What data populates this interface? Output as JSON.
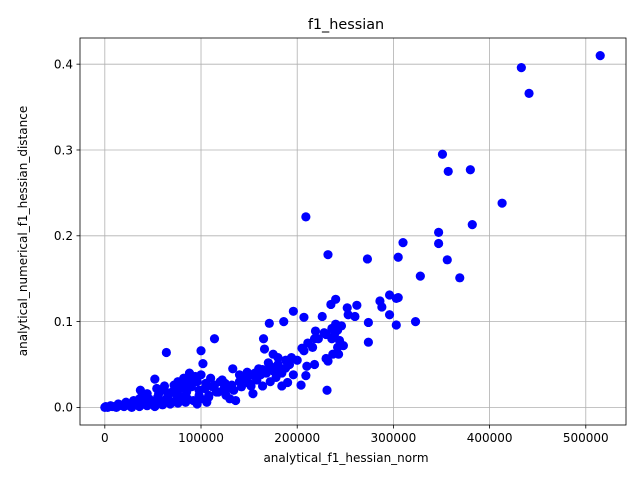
{
  "chart_data": {
    "type": "scatter",
    "title": "f1_hessian",
    "xlabel": "analytical_f1_hessian_norm",
    "ylabel": "analytical_numerical_f1_hessian_distance",
    "xlim": [
      -25800,
      541800
    ],
    "ylim": [
      -0.0205,
      0.4305
    ],
    "xticks": [
      0,
      100000,
      200000,
      300000,
      400000,
      500000
    ],
    "xtick_labels": [
      "0",
      "100000",
      "200000",
      "300000",
      "400000",
      "500000"
    ],
    "yticks": [
      0.0,
      0.1,
      0.2,
      0.3,
      0.4
    ],
    "ytick_labels": [
      "0.0",
      "0.1",
      "0.2",
      "0.3",
      "0.4"
    ],
    "grid": true,
    "point_color": "#0000ff",
    "series": [
      {
        "points": [
          [
            515000,
            0.41
          ],
          [
            433000,
            0.396
          ],
          [
            441000,
            0.366
          ],
          [
            351000,
            0.295
          ],
          [
            357000,
            0.275
          ],
          [
            380000,
            0.277
          ],
          [
            413000,
            0.238
          ],
          [
            382000,
            0.213
          ],
          [
            347000,
            0.204
          ],
          [
            347000,
            0.191
          ],
          [
            356000,
            0.172
          ],
          [
            369000,
            0.151
          ],
          [
            328000,
            0.153
          ],
          [
            310000,
            0.192
          ],
          [
            305000,
            0.175
          ],
          [
            273000,
            0.173
          ],
          [
            209000,
            0.222
          ],
          [
            232000,
            0.178
          ],
          [
            296000,
            0.131
          ],
          [
            303000,
            0.127
          ],
          [
            305000,
            0.128
          ],
          [
            286000,
            0.124
          ],
          [
            288000,
            0.117
          ],
          [
            296000,
            0.108
          ],
          [
            323000,
            0.1
          ],
          [
            303000,
            0.096
          ],
          [
            274000,
            0.076
          ],
          [
            274000,
            0.099
          ],
          [
            262000,
            0.119
          ],
          [
            252000,
            0.116
          ],
          [
            253000,
            0.108
          ],
          [
            260000,
            0.106
          ],
          [
            240000,
            0.126
          ],
          [
            235000,
            0.12
          ],
          [
            226000,
            0.106
          ],
          [
            240000,
            0.097
          ],
          [
            236000,
            0.092
          ],
          [
            239000,
            0.086
          ],
          [
            230000,
            0.085
          ],
          [
            219000,
            0.089
          ],
          [
            218000,
            0.08
          ],
          [
            236000,
            0.08
          ],
          [
            242000,
            0.07
          ],
          [
            243000,
            0.062
          ],
          [
            237000,
            0.062
          ],
          [
            230000,
            0.057
          ],
          [
            232000,
            0.054
          ],
          [
            218000,
            0.05
          ],
          [
            231000,
            0.02
          ],
          [
            207000,
            0.105
          ],
          [
            196000,
            0.112
          ],
          [
            186000,
            0.1
          ],
          [
            171000,
            0.098
          ],
          [
            211000,
            0.075
          ],
          [
            205000,
            0.069
          ],
          [
            207000,
            0.066
          ],
          [
            204000,
            0.026
          ],
          [
            209000,
            0.037
          ],
          [
            165000,
            0.08
          ],
          [
            166000,
            0.068
          ],
          [
            114000,
            0.08
          ],
          [
            100000,
            0.066
          ],
          [
            102000,
            0.051
          ],
          [
            64000,
            0.064
          ],
          [
            52000,
            0.033
          ],
          [
            62000,
            0.025
          ],
          [
            37000,
            0.02
          ],
          [
            194000,
            0.058
          ],
          [
            188000,
            0.055
          ],
          [
            180000,
            0.058
          ],
          [
            175000,
            0.062
          ],
          [
            170000,
            0.052
          ],
          [
            164000,
            0.025
          ],
          [
            184000,
            0.025
          ],
          [
            190000,
            0.029
          ],
          [
            180000,
            0.044
          ],
          [
            178000,
            0.035
          ],
          [
            172000,
            0.03
          ],
          [
            160000,
            0.045
          ],
          [
            155000,
            0.037
          ],
          [
            154000,
            0.016
          ],
          [
            152000,
            0.025
          ],
          [
            145000,
            0.033
          ],
          [
            136000,
            0.008
          ],
          [
            130000,
            0.01
          ],
          [
            148000,
            0.041
          ],
          [
            140000,
            0.038
          ],
          [
            133000,
            0.045
          ],
          [
            128000,
            0.022
          ],
          [
            125000,
            0.028
          ],
          [
            120000,
            0.03
          ],
          [
            118000,
            0.018
          ],
          [
            112000,
            0.024
          ],
          [
            108000,
            0.012
          ],
          [
            105000,
            0.028
          ],
          [
            98000,
            0.02
          ],
          [
            96000,
            0.004
          ],
          [
            92000,
            0.034
          ],
          [
            88000,
            0.03
          ],
          [
            85000,
            0.018
          ],
          [
            82000,
            0.026
          ],
          [
            80000,
            0.012
          ],
          [
            76000,
            0.03
          ],
          [
            74000,
            0.016
          ],
          [
            70000,
            0.006
          ],
          [
            66000,
            0.014
          ],
          [
            62000,
            0.02
          ],
          [
            58000,
            0.008
          ],
          [
            55000,
            0.012
          ],
          [
            50000,
            0.004
          ],
          [
            46000,
            0.01
          ],
          [
            42000,
            0.006
          ],
          [
            38000,
            0.012
          ],
          [
            34000,
            0.004
          ],
          [
            30000,
            0.008
          ],
          [
            26000,
            0.002
          ],
          [
            22000,
            0.006
          ],
          [
            18000,
            0.002
          ],
          [
            14000,
            0.004
          ],
          [
            10000,
            0.001
          ],
          [
            6000,
            0.002
          ],
          [
            3000,
            0.0
          ],
          [
            1000,
            0.001
          ],
          [
            0,
            0.0
          ],
          [
            12000,
            0.0
          ],
          [
            20000,
            0.001
          ],
          [
            28000,
            0.0
          ],
          [
            36000,
            0.001
          ],
          [
            44000,
            0.002
          ],
          [
            52000,
            0.001
          ],
          [
            60000,
            0.003
          ],
          [
            68000,
            0.004
          ],
          [
            76000,
            0.005
          ],
          [
            84000,
            0.006
          ],
          [
            92000,
            0.008
          ],
          [
            100000,
            0.01
          ],
          [
            108000,
            0.014
          ],
          [
            116000,
            0.018
          ],
          [
            124000,
            0.022
          ],
          [
            132000,
            0.026
          ],
          [
            140000,
            0.03
          ],
          [
            148000,
            0.036
          ],
          [
            156000,
            0.04
          ],
          [
            164000,
            0.044
          ],
          [
            172000,
            0.048
          ],
          [
            180000,
            0.05
          ],
          [
            188000,
            0.046
          ],
          [
            196000,
            0.038
          ],
          [
            88000,
            0.04
          ],
          [
            94000,
            0.036
          ],
          [
            110000,
            0.034
          ],
          [
            122000,
            0.032
          ],
          [
            104000,
            0.022
          ],
          [
            114000,
            0.026
          ],
          [
            90000,
            0.024
          ],
          [
            78000,
            0.022
          ],
          [
            70000,
            0.018
          ],
          [
            64000,
            0.01
          ],
          [
            56000,
            0.016
          ],
          [
            48000,
            0.008
          ],
          [
            40000,
            0.009
          ],
          [
            32000,
            0.006
          ],
          [
            24000,
            0.004
          ],
          [
            16000,
            0.003
          ],
          [
            8000,
            0.001
          ],
          [
            126000,
            0.014
          ],
          [
            134000,
            0.02
          ],
          [
            142000,
            0.024
          ],
          [
            150000,
            0.028
          ],
          [
            158000,
            0.032
          ],
          [
            162000,
            0.038
          ],
          [
            168000,
            0.04
          ],
          [
            176000,
            0.042
          ],
          [
            184000,
            0.04
          ],
          [
            192000,
            0.05
          ],
          [
            200000,
            0.055
          ],
          [
            216000,
            0.07
          ],
          [
            222000,
            0.08
          ],
          [
            228000,
            0.087
          ],
          [
            242000,
            0.09
          ],
          [
            244000,
            0.078
          ],
          [
            246000,
            0.095
          ],
          [
            248000,
            0.072
          ],
          [
            210000,
            0.048
          ],
          [
            106000,
            0.006
          ],
          [
            98000,
            0.014
          ],
          [
            86000,
            0.01
          ],
          [
            74000,
            0.008
          ],
          [
            44000,
            0.016
          ],
          [
            36000,
            0.01
          ],
          [
            54000,
            0.022
          ],
          [
            72000,
            0.026
          ],
          [
            82000,
            0.034
          ],
          [
            96000,
            0.03
          ],
          [
            100000,
            0.038
          ]
        ]
      }
    ]
  }
}
